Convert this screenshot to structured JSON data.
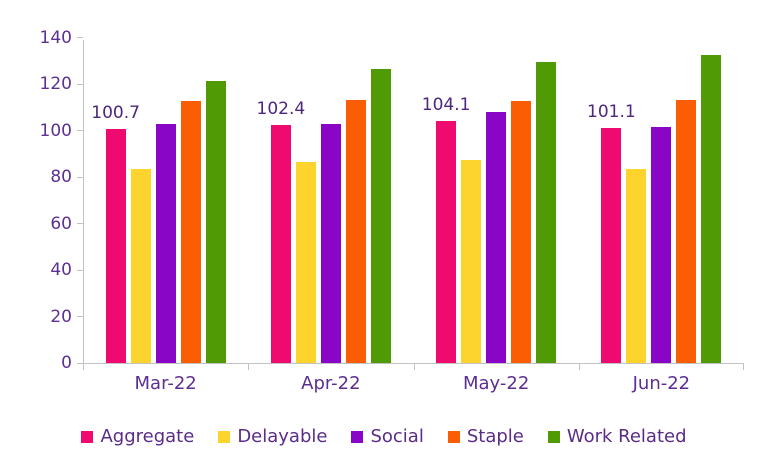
{
  "chart_data": {
    "type": "bar",
    "title": "",
    "categories": [
      "Mar-22",
      "Apr-22",
      "May-22",
      "Jun-22"
    ],
    "series": [
      {
        "name": "Aggregate",
        "color": "#ee0a6e",
        "values": [
          100.7,
          102.4,
          104.1,
          101.1
        ]
      },
      {
        "name": "Delayable",
        "color": "#fcd42d",
        "values": [
          83.5,
          86.5,
          87.5,
          83.5
        ]
      },
      {
        "name": "Social",
        "color": "#8a06c6",
        "values": [
          103,
          103,
          108,
          101.5
        ]
      },
      {
        "name": "Staple",
        "color": "#fb5d05",
        "values": [
          112.5,
          113,
          112.5,
          113
        ]
      },
      {
        "name": "Work Related",
        "color": "#4f9a05",
        "values": [
          121.5,
          126.5,
          129.5,
          132.5
        ]
      }
    ],
    "data_labels": {
      "series": "Aggregate",
      "values": [
        "100.7",
        "102.4",
        "104.1",
        "101.1"
      ]
    },
    "ylim": [
      0,
      140
    ],
    "yticks": [
      0,
      20,
      40,
      60,
      80,
      100,
      120,
      140
    ],
    "xlabel": "",
    "ylabel": "",
    "grid": false,
    "legend_position": "bottom"
  },
  "style": {
    "axis_color": "#c2c2c2",
    "ytick_label_color": "#5c3192",
    "xtick_label_color": "#5c2e91",
    "data_label_color": "#4d267d",
    "legend_text_color": "#5a2c87",
    "background": "#ffffff"
  }
}
